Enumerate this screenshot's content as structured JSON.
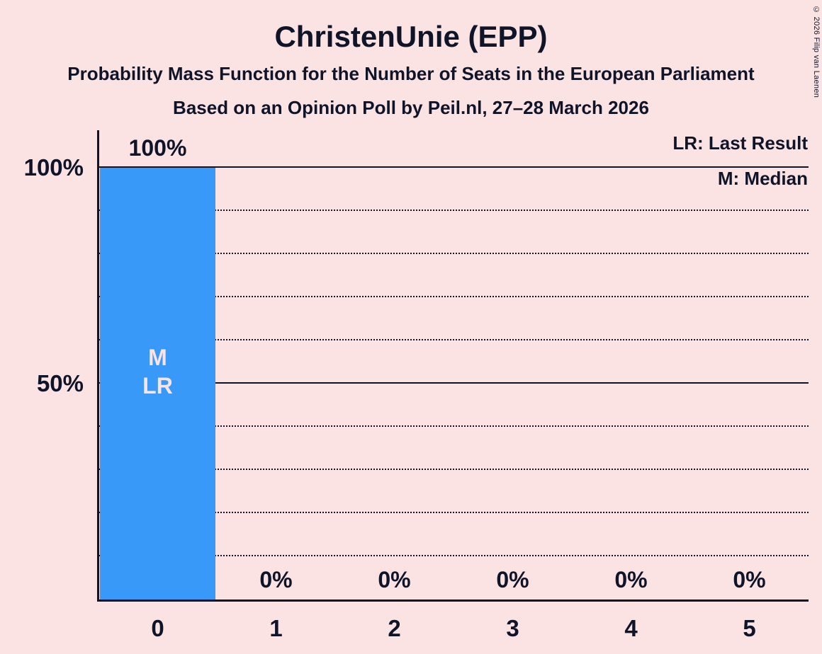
{
  "title": "ChristenUnie (EPP)",
  "subtitles": [
    "Probability Mass Function for the Number of Seats in the European Parliament",
    "Based on an Opinion Poll by Peil.nl, 27–28 March 2026"
  ],
  "copyright": "© 2026 Filip van Laenen",
  "legend": {
    "lr_label": "LR: Last Result",
    "m_label": "M: Median"
  },
  "colors": {
    "background": "#fbe3e3",
    "bar": "#3899f8",
    "ink": "#101429"
  },
  "chart_data": {
    "type": "bar",
    "categories": [
      "0",
      "1",
      "2",
      "3",
      "4",
      "5"
    ],
    "values": [
      100,
      0,
      0,
      0,
      0,
      0
    ],
    "bar_value_labels": [
      "100%",
      "0%",
      "0%",
      "0%",
      "0%",
      "0%"
    ],
    "title": "ChristenUnie (EPP)",
    "ylim": [
      0,
      100
    ],
    "y_axis_ticks": [
      {
        "label": "100%",
        "value": 100
      },
      {
        "label": "50%",
        "value": 50
      }
    ],
    "gridlines": {
      "step": 10,
      "solid_at": [
        100,
        50
      ],
      "dotted_style": "dotted",
      "grid": "horizontal-only"
    },
    "legend_position": "top-right",
    "annotations": [
      {
        "category": "0",
        "labels": [
          "M",
          "LR"
        ],
        "meaning": [
          "Median",
          "Last Result"
        ]
      }
    ]
  }
}
